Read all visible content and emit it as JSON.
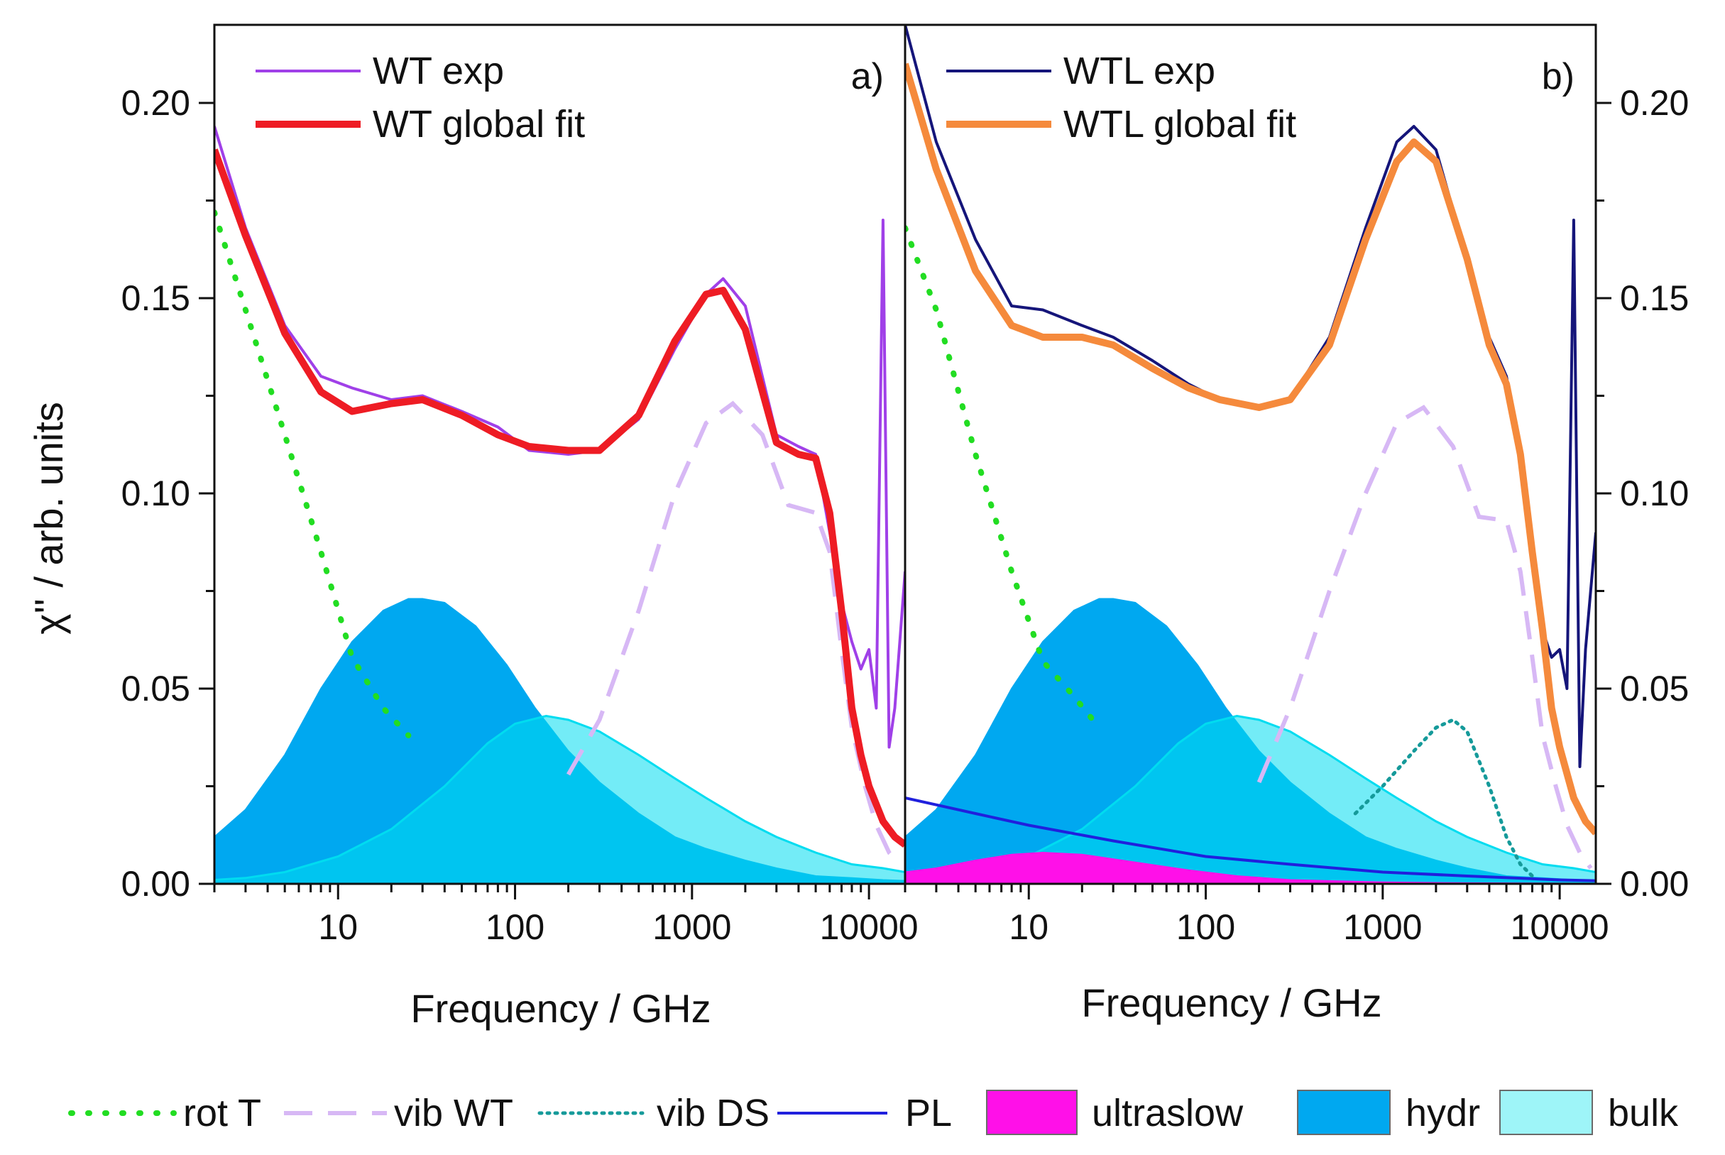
{
  "chart_data": {
    "type": "line",
    "y_axis": {
      "label": "χ'' / arb. units",
      "range": [
        0,
        0.22
      ],
      "ticks": [
        0.0,
        0.05,
        0.1,
        0.15,
        0.2
      ],
      "tick_labels": [
        "0.00",
        "0.05",
        "0.10",
        "0.15",
        "0.20"
      ]
    },
    "x_axis": {
      "label": "Frequency / GHz",
      "scale": "log",
      "range": [
        2,
        16000
      ],
      "ticks": [
        10,
        100,
        1000,
        10000
      ],
      "tick_labels": [
        "10",
        "100",
        "1000",
        "10000"
      ]
    },
    "panels": [
      {
        "id": "a",
        "tag": "a)",
        "legend": [
          "WT exp",
          "WT global fit"
        ],
        "colors": {
          "exp": "#a040e8",
          "fit": "#ee1c24",
          "rot": "#22dd22",
          "vib_wt": "#d7b8f5",
          "hydr": "#00a8f0",
          "bulk": "#00dcf0",
          "bulk_light": "#9ef5f8"
        },
        "series": [
          {
            "name": "WT exp",
            "x": [
              2,
              3,
              5,
              8,
              12,
              20,
              30,
              50,
              80,
              120,
              200,
              300,
              500,
              800,
              1200,
              1500,
              2000,
              3000,
              4000,
              5000,
              6000,
              7000,
              8000,
              9000,
              10000,
              11000,
              12000,
              13000,
              14000,
              16000
            ],
            "values": [
              0.194,
              0.168,
              0.143,
              0.13,
              0.127,
              0.124,
              0.125,
              0.121,
              0.117,
              0.111,
              0.11,
              0.111,
              0.119,
              0.137,
              0.151,
              0.155,
              0.148,
              0.115,
              0.112,
              0.11,
              0.09,
              0.072,
              0.062,
              0.055,
              0.06,
              0.045,
              0.17,
              0.035,
              0.045,
              0.08
            ]
          },
          {
            "name": "WT global fit",
            "x": [
              2,
              3,
              5,
              8,
              12,
              20,
              30,
              50,
              80,
              120,
              200,
              300,
              500,
              800,
              1200,
              1500,
              2000,
              3000,
              4000,
              5000,
              6000,
              7000,
              8000,
              9000,
              10000,
              12000,
              14000,
              16000
            ],
            "values": [
              0.188,
              0.166,
              0.141,
              0.126,
              0.121,
              0.123,
              0.124,
              0.12,
              0.115,
              0.112,
              0.111,
              0.111,
              0.12,
              0.139,
              0.151,
              0.152,
              0.142,
              0.113,
              0.11,
              0.109,
              0.095,
              0.07,
              0.045,
              0.033,
              0.025,
              0.016,
              0.012,
              0.01
            ]
          },
          {
            "name": "rot T",
            "x": [
              2,
              3,
              5,
              8,
              12,
              18,
              25
            ],
            "values": [
              0.172,
              0.147,
              0.115,
              0.085,
              0.058,
              0.045,
              0.038
            ]
          },
          {
            "name": "vib WT",
            "x": [
              200,
              300,
              500,
              800,
              1200,
              1700,
              2500,
              3500,
              5000,
              6000,
              7000,
              8000,
              9500,
              11000,
              13000,
              15000
            ],
            "values": [
              0.028,
              0.042,
              0.07,
              0.1,
              0.118,
              0.123,
              0.115,
              0.097,
              0.095,
              0.085,
              0.06,
              0.04,
              0.025,
              0.015,
              0.008,
              0.005
            ]
          },
          {
            "name": "hydr",
            "x": [
              2,
              3,
              5,
              8,
              12,
              18,
              25,
              30,
              40,
              60,
              90,
              130,
              200,
              300,
              500,
              800,
              1200,
              2000,
              3000,
              5000,
              8000,
              12000,
              16000
            ],
            "values": [
              0.012,
              0.019,
              0.033,
              0.05,
              0.062,
              0.07,
              0.073,
              0.073,
              0.072,
              0.066,
              0.056,
              0.045,
              0.034,
              0.026,
              0.018,
              0.012,
              0.009,
              0.006,
              0.004,
              0.002,
              0.0015,
              0.001,
              0.0008
            ]
          },
          {
            "name": "bulk",
            "x": [
              2,
              3,
              5,
              10,
              20,
              40,
              70,
              100,
              150,
              200,
              300,
              500,
              800,
              1200,
              2000,
              3000,
              5000,
              8000,
              12000,
              16000
            ],
            "values": [
              0.001,
              0.0015,
              0.003,
              0.007,
              0.014,
              0.025,
              0.036,
              0.041,
              0.043,
              0.042,
              0.039,
              0.033,
              0.027,
              0.022,
              0.016,
              0.012,
              0.008,
              0.005,
              0.004,
              0.003
            ]
          }
        ]
      },
      {
        "id": "b",
        "tag": "b)",
        "legend": [
          "WTL exp",
          "WTL global fit"
        ],
        "colors": {
          "exp": "#15157a",
          "fit": "#f58a3c",
          "rot": "#22dd22",
          "vib_wt": "#d7b8f5",
          "vib_ds": "#159a9a",
          "pl": "#2020dd",
          "ultraslow": "#ff10e8",
          "hydr": "#00a8f0",
          "bulk": "#00dcf0",
          "bulk_light": "#9ef5f8"
        },
        "series": [
          {
            "name": "WTL exp",
            "x": [
              2,
              3,
              5,
              8,
              12,
              20,
              30,
              50,
              80,
              120,
              200,
              300,
              500,
              800,
              1200,
              1500,
              2000,
              3000,
              4000,
              5000,
              6000,
              7000,
              8000,
              9000,
              10000,
              11000,
              12000,
              13000,
              14000,
              16000
            ],
            "values": [
              0.22,
              0.19,
              0.165,
              0.148,
              0.147,
              0.143,
              0.14,
              0.134,
              0.128,
              0.124,
              0.122,
              0.124,
              0.14,
              0.168,
              0.19,
              0.194,
              0.188,
              0.16,
              0.14,
              0.13,
              0.11,
              0.085,
              0.065,
              0.058,
              0.06,
              0.05,
              0.17,
              0.03,
              0.06,
              0.09
            ]
          },
          {
            "name": "WTL global fit",
            "x": [
              2,
              3,
              5,
              8,
              12,
              20,
              30,
              50,
              80,
              120,
              200,
              300,
              500,
              800,
              1200,
              1500,
              2000,
              3000,
              4000,
              5000,
              6000,
              7000,
              8000,
              9000,
              10000,
              12000,
              14000,
              16000
            ],
            "values": [
              0.21,
              0.183,
              0.157,
              0.143,
              0.14,
              0.14,
              0.138,
              0.132,
              0.127,
              0.124,
              0.122,
              0.124,
              0.138,
              0.165,
              0.185,
              0.19,
              0.185,
              0.16,
              0.138,
              0.128,
              0.11,
              0.085,
              0.065,
              0.045,
              0.035,
              0.022,
              0.016,
              0.013
            ]
          },
          {
            "name": "rot T",
            "x": [
              2,
              3,
              5,
              8,
              12,
              18,
              25
            ],
            "values": [
              0.168,
              0.147,
              0.11,
              0.08,
              0.057,
              0.048,
              0.04
            ]
          },
          {
            "name": "vib WT",
            "x": [
              200,
              300,
              500,
              800,
              1200,
              1700,
              2500,
              3500,
              5000,
              6000,
              7000,
              8000,
              9500,
              11000,
              13000,
              15000
            ],
            "values": [
              0.026,
              0.045,
              0.075,
              0.1,
              0.118,
              0.122,
              0.112,
              0.094,
              0.093,
              0.08,
              0.058,
              0.038,
              0.025,
              0.015,
              0.008,
              0.004
            ]
          },
          {
            "name": "vib DS",
            "x": [
              700,
              1000,
              1500,
              2000,
              2500,
              3000,
              4000,
              5000,
              6000,
              7000
            ],
            "values": [
              0.018,
              0.025,
              0.034,
              0.04,
              0.042,
              0.039,
              0.025,
              0.012,
              0.005,
              0.002
            ]
          },
          {
            "name": "PL",
            "x": [
              2,
              5,
              10,
              30,
              100,
              300,
              1000,
              3000,
              10000,
              16000
            ],
            "values": [
              0.022,
              0.018,
              0.015,
              0.011,
              0.007,
              0.005,
              0.003,
              0.002,
              0.001,
              0.0008
            ]
          },
          {
            "name": "ultraslow",
            "x": [
              2,
              3,
              5,
              8,
              12,
              20,
              40,
              80,
              150,
              300,
              1000,
              3000,
              16000
            ],
            "values": [
              0.003,
              0.004,
              0.006,
              0.0075,
              0.008,
              0.0075,
              0.0055,
              0.0035,
              0.002,
              0.001,
              0.0004,
              0.0002,
              0.0001
            ]
          },
          {
            "name": "hydr",
            "x": [
              2,
              3,
              5,
              8,
              12,
              18,
              25,
              30,
              40,
              60,
              90,
              130,
              200,
              300,
              500,
              800,
              1200,
              2000,
              3000,
              5000,
              8000,
              12000,
              16000
            ],
            "values": [
              0.012,
              0.019,
              0.033,
              0.05,
              0.062,
              0.07,
              0.073,
              0.073,
              0.072,
              0.066,
              0.056,
              0.045,
              0.034,
              0.026,
              0.018,
              0.012,
              0.009,
              0.006,
              0.004,
              0.002,
              0.0015,
              0.001,
              0.0008
            ]
          },
          {
            "name": "bulk",
            "x": [
              2,
              3,
              5,
              10,
              20,
              40,
              70,
              100,
              150,
              200,
              300,
              500,
              800,
              1200,
              2000,
              3000,
              5000,
              8000,
              12000,
              16000
            ],
            "values": [
              0.001,
              0.0015,
              0.003,
              0.007,
              0.014,
              0.025,
              0.036,
              0.041,
              0.043,
              0.042,
              0.039,
              0.033,
              0.027,
              0.022,
              0.016,
              0.012,
              0.008,
              0.005,
              0.004,
              0.003
            ]
          }
        ]
      }
    ],
    "bottom_legend": [
      {
        "name": "rot T",
        "style": "dotted",
        "color": "#22dd22"
      },
      {
        "name": "vib WT",
        "style": "dashed",
        "color": "#d7b8f5"
      },
      {
        "name": "vib DS",
        "style": "dotted-fine",
        "color": "#159a9a"
      },
      {
        "name": "PL",
        "style": "solid",
        "color": "#2020dd"
      },
      {
        "name": "ultraslow",
        "style": "swatch",
        "color": "#ff10e8"
      },
      {
        "name": "hydr",
        "style": "swatch",
        "color": "#00a8f0"
      },
      {
        "name": "bulk",
        "style": "swatch",
        "color": "#9ef5f8"
      }
    ]
  }
}
